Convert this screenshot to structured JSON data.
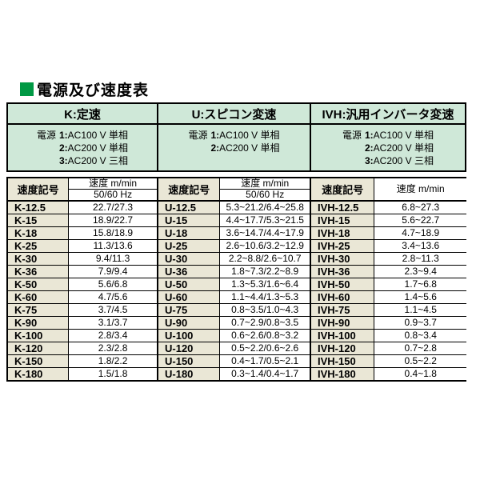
{
  "title": "電源及び速度表",
  "colors": {
    "accent_green": "#009944",
    "header_green": "#cfe8d8",
    "code_cell_beige": "#eae7d6",
    "border_black": "#000000"
  },
  "tables": [
    {
      "id": "K",
      "header": "K:定速",
      "power_label": "電源",
      "power_options": [
        "1:AC100 V 単相",
        "2:AC200 V 単相",
        "3:AC200 V 三相"
      ],
      "col_code": "速度記号",
      "col_speed": "速度 m/min",
      "col_freq": "50/60 Hz",
      "rows": [
        {
          "code": "K-12.5",
          "value": "22.7/27.3"
        },
        {
          "code": "K-15",
          "value": "18.9/22.7"
        },
        {
          "code": "K-18",
          "value": "15.8/18.9"
        },
        {
          "code": "K-25",
          "value": "11.3/13.6"
        },
        {
          "code": "K-30",
          "value": "9.4/11.3"
        },
        {
          "code": "K-36",
          "value": "7.9/9.4"
        },
        {
          "code": "K-50",
          "value": "5.6/6.8"
        },
        {
          "code": "K-60",
          "value": "4.7/5.6"
        },
        {
          "code": "K-75",
          "value": "3.7/4.5"
        },
        {
          "code": "K-90",
          "value": "3.1/3.7"
        },
        {
          "code": "K-100",
          "value": "2.8/3.4"
        },
        {
          "code": "K-120",
          "value": "2.3/2.8"
        },
        {
          "code": "K-150",
          "value": "1.8/2.2"
        },
        {
          "code": "K-180",
          "value": "1.5/1.8"
        }
      ]
    },
    {
      "id": "U",
      "header": "U:スピコン変速",
      "power_label": "電源",
      "power_options": [
        "1:AC100 V 単相",
        "2:AC200 V 単相"
      ],
      "col_code": "速度記号",
      "col_speed": "速度 m/min",
      "col_freq": "50/60 Hz",
      "rows": [
        {
          "code": "U-12.5",
          "value": "5.3~21.2/6.4~25.8"
        },
        {
          "code": "U-15",
          "value": "4.4~17.7/5.3~21.5"
        },
        {
          "code": "U-18",
          "value": "3.6~14.7/4.4~17.9"
        },
        {
          "code": "U-25",
          "value": "2.6~10.6/3.2~12.9"
        },
        {
          "code": "U-30",
          "value": "2.2~8.8/2.6~10.7"
        },
        {
          "code": "U-36",
          "value": "1.8~7.3/2.2~8.9"
        },
        {
          "code": "U-50",
          "value": "1.3~5.3/1.6~6.4"
        },
        {
          "code": "U-60",
          "value": "1.1~4.4/1.3~5.3"
        },
        {
          "code": "U-75",
          "value": "0.8~3.5/1.0~4.3"
        },
        {
          "code": "U-90",
          "value": "0.7~2.9/0.8~3.5"
        },
        {
          "code": "U-100",
          "value": "0.6~2.6/0.8~3.2"
        },
        {
          "code": "U-120",
          "value": "0.5~2.2/0.6~2.6"
        },
        {
          "code": "U-150",
          "value": "0.4~1.7/0.5~2.1"
        },
        {
          "code": "U-180",
          "value": "0.3~1.4/0.4~1.7"
        }
      ]
    },
    {
      "id": "IVH",
      "header": "IVH:汎用インバータ変速",
      "power_label": "電源",
      "power_options": [
        "1:AC100 V 単相",
        "2:AC200 V 単相",
        "3:AC200 V 三相"
      ],
      "col_code": "速度記号",
      "col_speed": "速度 m/min",
      "rows": [
        {
          "code": "IVH-12.5",
          "value": "6.8~27.3"
        },
        {
          "code": "IVH-15",
          "value": "5.6~22.7"
        },
        {
          "code": "IVH-18",
          "value": "4.7~18.9"
        },
        {
          "code": "IVH-25",
          "value": "3.4~13.6"
        },
        {
          "code": "IVH-30",
          "value": "2.8~11.3"
        },
        {
          "code": "IVH-36",
          "value": "2.3~9.4"
        },
        {
          "code": "IVH-50",
          "value": "1.7~6.8"
        },
        {
          "code": "IVH-60",
          "value": "1.4~5.6"
        },
        {
          "code": "IVH-75",
          "value": "1.1~4.5"
        },
        {
          "code": "IVH-90",
          "value": "0.9~3.7"
        },
        {
          "code": "IVH-100",
          "value": "0.8~3.4"
        },
        {
          "code": "IVH-120",
          "value": "0.7~2.8"
        },
        {
          "code": "IVH-150",
          "value": "0.5~2.2"
        },
        {
          "code": "IVH-180",
          "value": "0.4~1.8"
        }
      ]
    }
  ]
}
